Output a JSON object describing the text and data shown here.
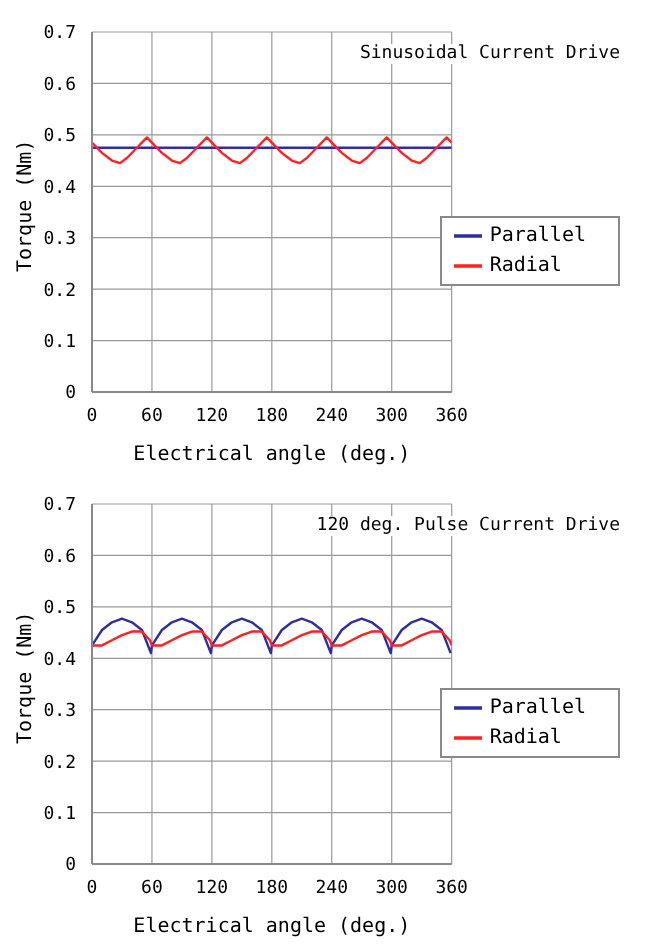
{
  "chart_data": [
    {
      "type": "line",
      "xlabel": "Electrical angle (deg.)",
      "ylabel": "Torque (Nm)",
      "annotations": [
        "Sinusoidal Current Drive"
      ],
      "xlim": [
        0,
        360
      ],
      "xticks": [
        0,
        60,
        120,
        180,
        240,
        300,
        360
      ],
      "ylim": [
        0,
        0.7
      ],
      "yticks": [
        0,
        0.1,
        0.2,
        0.3,
        0.4,
        0.5,
        0.6,
        0.7
      ],
      "grid": true,
      "legend": "right",
      "marker": "none",
      "series": [
        {
          "name": "Parallel",
          "color": "#2e2e9e",
          "x": [
            0,
            360
          ],
          "values": [
            0.475,
            0.475
          ]
        },
        {
          "name": "Radial",
          "color": "#ff2020",
          "x": [
            0,
            10,
            20,
            28,
            35,
            45,
            55,
            60,
            70,
            80,
            88,
            95,
            105,
            115,
            120,
            130,
            140,
            148,
            155,
            165,
            175,
            180,
            190,
            200,
            208,
            215,
            225,
            235,
            240,
            250,
            260,
            268,
            275,
            285,
            295,
            300,
            310,
            320,
            328,
            335,
            345,
            355,
            360
          ],
          "values": [
            0.485,
            0.465,
            0.45,
            0.445,
            0.455,
            0.475,
            0.495,
            0.485,
            0.465,
            0.45,
            0.445,
            0.455,
            0.475,
            0.495,
            0.485,
            0.465,
            0.45,
            0.445,
            0.455,
            0.475,
            0.495,
            0.485,
            0.465,
            0.45,
            0.445,
            0.455,
            0.475,
            0.495,
            0.485,
            0.465,
            0.45,
            0.445,
            0.455,
            0.475,
            0.495,
            0.485,
            0.465,
            0.45,
            0.445,
            0.455,
            0.475,
            0.495,
            0.485
          ]
        }
      ]
    },
    {
      "type": "line",
      "xlabel": "Electrical angle (deg.)",
      "ylabel": "Torque (Nm)",
      "annotations": [
        "120 deg. Pulse Current Drive"
      ],
      "xlim": [
        0,
        360
      ],
      "xticks": [
        0,
        60,
        120,
        180,
        240,
        300,
        360
      ],
      "ylim": [
        0,
        0.7
      ],
      "yticks": [
        0,
        0.1,
        0.2,
        0.3,
        0.4,
        0.5,
        0.6,
        0.7
      ],
      "grid": true,
      "legend": "right",
      "marker": "none",
      "series": [
        {
          "name": "Parallel",
          "color": "#2e2e9e",
          "x": [
            0,
            10,
            20,
            30,
            40,
            50,
            59,
            60,
            70,
            80,
            90,
            100,
            110,
            119,
            120,
            130,
            140,
            150,
            160,
            170,
            179,
            180,
            190,
            200,
            210,
            220,
            230,
            239,
            240,
            250,
            260,
            270,
            280,
            290,
            299,
            300,
            310,
            320,
            330,
            340,
            350,
            359
          ],
          "values": [
            0.425,
            0.455,
            0.47,
            0.477,
            0.47,
            0.455,
            0.41,
            0.425,
            0.455,
            0.47,
            0.477,
            0.47,
            0.455,
            0.41,
            0.425,
            0.455,
            0.47,
            0.477,
            0.47,
            0.455,
            0.41,
            0.425,
            0.455,
            0.47,
            0.477,
            0.47,
            0.455,
            0.41,
            0.425,
            0.455,
            0.47,
            0.477,
            0.47,
            0.455,
            0.41,
            0.425,
            0.455,
            0.47,
            0.477,
            0.47,
            0.455,
            0.41
          ]
        },
        {
          "name": "Radial",
          "color": "#ff2020",
          "x": [
            0,
            10,
            20,
            30,
            40,
            50,
            58,
            60,
            70,
            80,
            90,
            100,
            110,
            118,
            120,
            130,
            140,
            150,
            160,
            170,
            178,
            180,
            190,
            200,
            210,
            220,
            230,
            238,
            240,
            250,
            260,
            270,
            280,
            290,
            298,
            300,
            310,
            320,
            330,
            340,
            350,
            358,
            360
          ],
          "values": [
            0.425,
            0.425,
            0.435,
            0.445,
            0.452,
            0.452,
            0.435,
            0.425,
            0.425,
            0.435,
            0.445,
            0.452,
            0.452,
            0.435,
            0.425,
            0.425,
            0.435,
            0.445,
            0.452,
            0.452,
            0.435,
            0.425,
            0.425,
            0.435,
            0.445,
            0.452,
            0.452,
            0.435,
            0.425,
            0.425,
            0.435,
            0.445,
            0.452,
            0.452,
            0.435,
            0.425,
            0.425,
            0.435,
            0.445,
            0.452,
            0.452,
            0.435,
            0.425
          ]
        }
      ]
    }
  ]
}
